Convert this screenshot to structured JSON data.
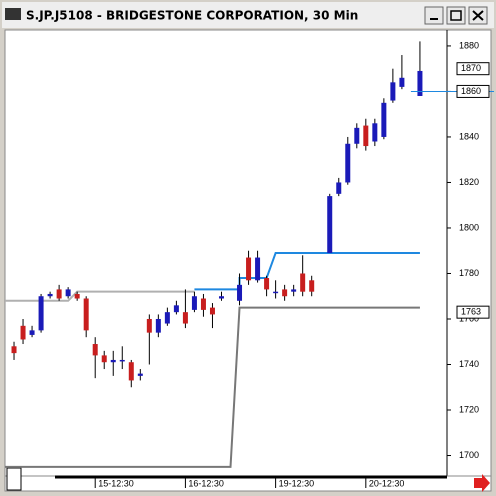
{
  "chart_data": {
    "type": "candlestick",
    "title": "S.JP.J5108 - BRIDGESTONE CORPORATION, 30 Min",
    "open": [
      1748,
      1757,
      1753,
      1755,
      1770,
      1773,
      1770,
      1771,
      1769,
      1749,
      1744,
      1741,
      1742,
      1741,
      1735,
      1760,
      1754,
      1758,
      1763,
      1763,
      1764,
      1769,
      1765,
      1769,
      null,
      1768,
      1787,
      1777,
      1778,
      1772,
      1773,
      1772,
      1780,
      1777,
      null,
      1789,
      1815,
      1820,
      1837,
      1845,
      1838,
      1840,
      1856,
      1862,
      null,
      1858
    ],
    "high": [
      1750,
      1760,
      1757,
      1771,
      1772,
      1775,
      1774,
      1772,
      1770,
      1752,
      1746,
      1746,
      1748,
      1742,
      1738,
      1762,
      1762,
      1765,
      1768,
      1773,
      1772,
      1771,
      1767,
      1772,
      null,
      1780,
      1790,
      1790,
      1779,
      1777,
      1775,
      1775,
      1788,
      1779,
      null,
      1815,
      1822,
      1840,
      1846,
      1848,
      1848,
      1857,
      1870,
      1876,
      null,
      1882
    ],
    "low": [
      1742,
      1749,
      1752,
      1754,
      1769,
      1768,
      1769,
      1768,
      1752,
      1734,
      1738,
      1735,
      1738,
      1730,
      1733,
      1740,
      1752,
      1757,
      1762,
      1756,
      1763,
      1761,
      1756,
      1768,
      null,
      1766,
      1775,
      1776,
      1770,
      1769,
      1768,
      1770,
      1770,
      1770,
      null,
      1789,
      1814,
      1819,
      1835,
      1834,
      1836,
      1839,
      1855,
      1861,
      null,
      1858
    ],
    "close": [
      1745,
      1751,
      1755,
      1770,
      1771,
      1769,
      1773,
      1769,
      1755,
      1744,
      1741,
      1742,
      1742,
      1733,
      1736,
      1754,
      1760,
      1763,
      1766,
      1758,
      1770,
      1764,
      1762,
      1770,
      null,
      1775,
      1777,
      1787,
      1773,
      1772,
      1770,
      1773,
      1772,
      1772,
      null,
      1814,
      1820,
      1837,
      1844,
      1836,
      1846,
      1855,
      1864,
      1866,
      null,
      1869
    ],
    "up_color": "#1a1ab8",
    "down_color": "#c81e1e",
    "series": [
      {
        "color": "#777777",
        "x": [
          -1,
          24,
          25,
          45
        ],
        "values": [
          1695,
          1695,
          1765,
          1765
        ]
      },
      {
        "color": "#b0b0b0",
        "x": [
          -1,
          6,
          7,
          20
        ],
        "values": [
          1768,
          1768,
          1772,
          1772
        ]
      },
      {
        "color": "#1e88e0",
        "x": [
          20,
          25,
          25,
          28,
          29,
          45
        ],
        "values": [
          1773,
          1773,
          1778,
          1778,
          1789,
          1789
        ]
      }
    ],
    "price_markers": [
      1870,
      1860,
      1763
    ],
    "ylim": [
      1691,
      1887
    ],
    "yticks": [
      1700,
      1720,
      1740,
      1760,
      1780,
      1800,
      1820,
      1840,
      1860,
      1880
    ],
    "xlim": [
      -1,
      48
    ],
    "xticks": [
      {
        "value": 9,
        "label": "15-12:30"
      },
      {
        "value": 19,
        "label": "16-12:30"
      },
      {
        "value": 29,
        "label": "19-12:30"
      },
      {
        "value": 39,
        "label": "20-12:30"
      }
    ]
  }
}
